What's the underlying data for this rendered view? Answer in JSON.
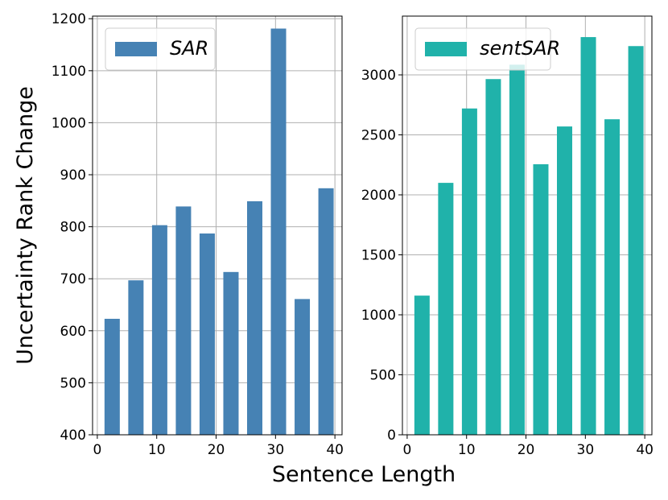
{
  "chart_data": [
    {
      "type": "bar",
      "ylabel": "Uncertainty Rank Change",
      "xlabel": "Sentence Length",
      "x": [
        2.5,
        6.5,
        10.5,
        14.5,
        18.5,
        22.5,
        26.5,
        30.5,
        34.5,
        38.5
      ],
      "series": [
        {
          "name": "SAR",
          "color": "#4682b4",
          "values": [
            623,
            697,
            803,
            839,
            787,
            713,
            849,
            1181,
            661,
            874
          ]
        }
      ],
      "xlim": [
        -0.8,
        41.2
      ],
      "xticks": [
        0,
        10,
        20,
        30,
        40
      ],
      "ylim": [
        400,
        1205
      ],
      "yticks": [
        400,
        500,
        600,
        700,
        800,
        900,
        1000,
        1100,
        1200
      ],
      "grid": true,
      "legend": "upper-left"
    },
    {
      "type": "bar",
      "x": [
        2.5,
        6.5,
        10.5,
        14.5,
        18.5,
        22.5,
        26.5,
        30.5,
        34.5,
        38.5
      ],
      "series": [
        {
          "name": "sentSAR",
          "color": "#20b2aa",
          "values": [
            1160,
            2100,
            2720,
            2965,
            3085,
            2255,
            2570,
            3315,
            2630,
            3240
          ]
        }
      ],
      "xlim": [
        -0.8,
        41.2
      ],
      "xticks": [
        0,
        10,
        20,
        30,
        40
      ],
      "ylim": [
        0,
        3490
      ],
      "yticks": [
        0,
        500,
        1000,
        1500,
        2000,
        2500,
        3000
      ],
      "grid": true,
      "legend": "upper-left"
    }
  ]
}
